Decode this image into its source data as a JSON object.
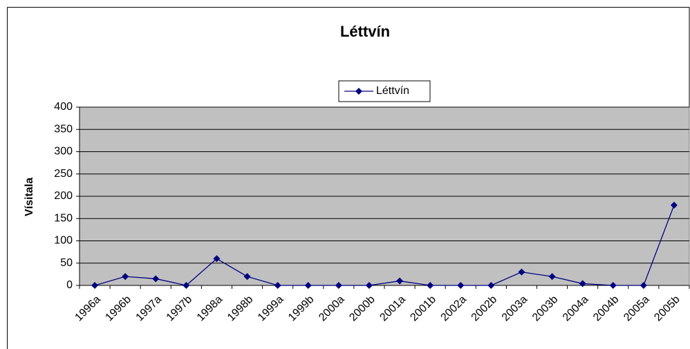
{
  "chart_data": {
    "type": "line",
    "title": "Léttvín",
    "y_label": "Vísitala",
    "categories": [
      "1996a",
      "1996b",
      "1997a",
      "1997b",
      "1998a",
      "1998b",
      "1999a",
      "1999b",
      "2000a",
      "2000b",
      "2001a",
      "2001b",
      "2002a",
      "2002b",
      "2003a",
      "2003b",
      "2004a",
      "2004b",
      "2005a",
      "2005b"
    ],
    "series": [
      {
        "name": "Léttvín",
        "color": "#000080",
        "values": [
          0,
          20,
          15,
          0,
          60,
          20,
          0,
          0,
          0,
          0,
          10,
          0,
          0,
          0,
          30,
          20,
          4,
          0,
          0,
          180
        ]
      }
    ],
    "ylim": [
      0,
      400
    ],
    "yticks": [
      0,
      50,
      100,
      150,
      200,
      250,
      300,
      350,
      400
    ],
    "grid": true,
    "legend": "top"
  }
}
